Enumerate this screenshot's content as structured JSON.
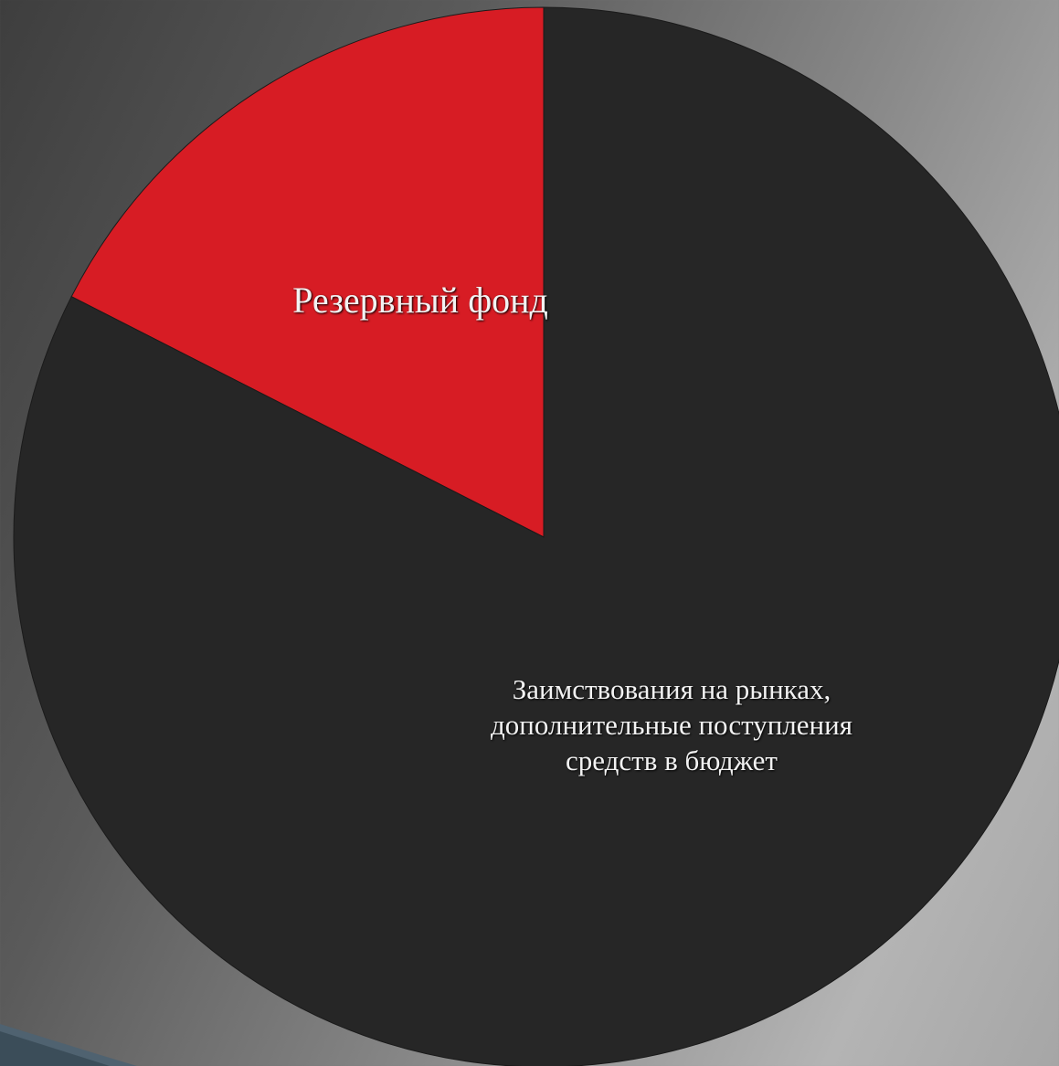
{
  "chart_data": {
    "type": "pie",
    "title": "",
    "slices": [
      {
        "label": "Резервный фонд",
        "value": 17.5,
        "color": "#d71c24"
      },
      {
        "label": "Заимствования на рынках, дополнительные поступления средств в бюджет",
        "value": 82.5,
        "color": "#262626"
      }
    ],
    "legend": "none",
    "data_labels": "inside"
  }
}
